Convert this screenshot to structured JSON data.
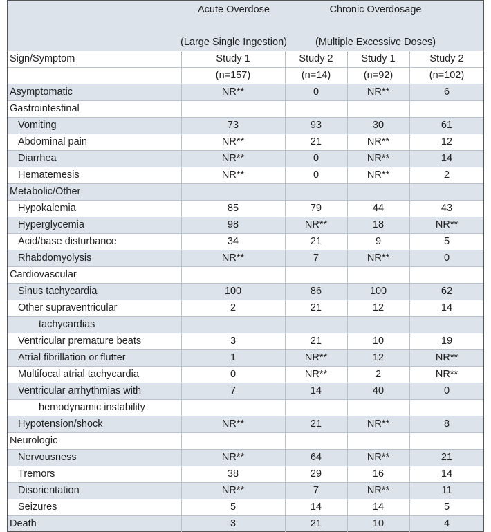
{
  "header": {
    "groups": [
      {
        "title": "Acute Overdose",
        "subtitle": "(Large Single Ingestion)"
      },
      {
        "title": "Chronic Overdosage",
        "subtitle": "(Multiple Excessive Doses)"
      }
    ]
  },
  "table": {
    "label_header": "Sign/Symptom",
    "columns": [
      {
        "name": "Study 1",
        "n": "(n=157)"
      },
      {
        "name": "Study 2",
        "n": "(n=14)"
      },
      {
        "name": "Study 1",
        "n": "(n=92)"
      },
      {
        "name": "Study 2",
        "n": "(n=102)"
      }
    ],
    "rows": [
      {
        "label": "Asymptomatic",
        "indent": 0,
        "values": [
          "NR**",
          "0",
          "NR**",
          "6"
        ]
      },
      {
        "label": "Gastrointestinal",
        "indent": 0
      },
      {
        "label": "Vomiting",
        "indent": 1,
        "values": [
          "73",
          "93",
          "30",
          "61"
        ]
      },
      {
        "label": "Abdominal pain",
        "indent": 1,
        "values": [
          "NR**",
          "21",
          "NR**",
          "12"
        ]
      },
      {
        "label": "Diarrhea",
        "indent": 1,
        "values": [
          "NR**",
          "0",
          "NR**",
          "14"
        ]
      },
      {
        "label": "Hematemesis",
        "indent": 1,
        "values": [
          "NR**",
          "0",
          "NR**",
          "2"
        ]
      },
      {
        "label": "Metabolic/Other",
        "indent": 0
      },
      {
        "label": "Hypokalemia",
        "indent": 1,
        "values": [
          "85",
          "79",
          "44",
          "43"
        ]
      },
      {
        "label": "Hyperglycemia",
        "indent": 1,
        "values": [
          "98",
          "NR**",
          "18",
          "NR**"
        ]
      },
      {
        "label": "Acid/base disturbance",
        "indent": 1,
        "values": [
          "34",
          "21",
          "9",
          "5"
        ]
      },
      {
        "label": "Rhabdomyolysis",
        "indent": 1,
        "values": [
          "NR**",
          "7",
          "NR**",
          "0"
        ]
      },
      {
        "label": "Cardiovascular",
        "indent": 0
      },
      {
        "label": "Sinus tachycardia",
        "indent": 1,
        "values": [
          "100",
          "86",
          "100",
          "62"
        ]
      },
      {
        "label": "Other supraventricular",
        "indent": 1,
        "values": [
          "2",
          "21",
          "12",
          "14"
        ]
      },
      {
        "label": "tachycardias",
        "indent": 2
      },
      {
        "label": "Ventricular premature beats",
        "indent": 1,
        "values": [
          "3",
          "21",
          "10",
          "19"
        ]
      },
      {
        "label": "Atrial fibrillation or flutter",
        "indent": 1,
        "values": [
          "1",
          "NR**",
          "12",
          "NR**"
        ]
      },
      {
        "label": "Multifocal atrial tachycardia",
        "indent": 1,
        "values": [
          "0",
          "NR**",
          "2",
          "NR**"
        ]
      },
      {
        "label": "Ventricular arrhythmias with",
        "indent": 1,
        "values": [
          "7",
          "14",
          "40",
          "0"
        ]
      },
      {
        "label": "hemodynamic instability",
        "indent": 2
      },
      {
        "label": "Hypotension/shock",
        "indent": 1,
        "values": [
          "NR**",
          "21",
          "NR**",
          "8"
        ]
      },
      {
        "label": "Neurologic",
        "indent": 0
      },
      {
        "label": "Nervousness",
        "indent": 1,
        "values": [
          "NR**",
          "64",
          "NR**",
          "21"
        ]
      },
      {
        "label": "Tremors",
        "indent": 1,
        "values": [
          "38",
          "29",
          "16",
          "14"
        ]
      },
      {
        "label": "Disorientation",
        "indent": 1,
        "values": [
          "NR**",
          "7",
          "NR**",
          "11"
        ]
      },
      {
        "label": "Seizures",
        "indent": 1,
        "values": [
          "5",
          "14",
          "14",
          "5"
        ]
      },
      {
        "label": "Death",
        "indent": 0,
        "values": [
          "3",
          "21",
          "10",
          "4"
        ]
      }
    ]
  }
}
